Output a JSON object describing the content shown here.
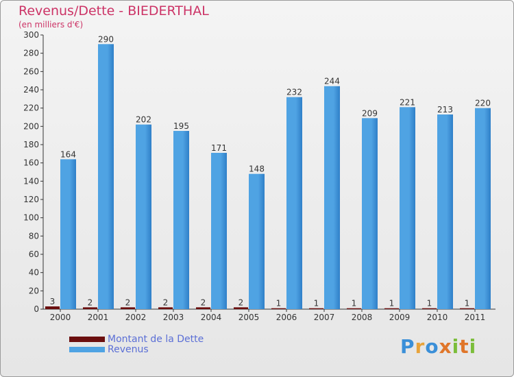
{
  "header": {
    "title": "Revenus/Dette - BIEDERTHAL",
    "subtitle": "(en milliers d'€)"
  },
  "legend": {
    "items": [
      {
        "label": "Montant de la Dette",
        "color": "#6b0f0f"
      },
      {
        "label": "Revenus",
        "color": "#4fa3e3"
      }
    ]
  },
  "logo": {
    "text": "Proxiti"
  },
  "colors": {
    "debt": "#6b0f0f",
    "revenue": "#4fa3e3",
    "revenue_dark": "#2f7fc8"
  },
  "chart_data": {
    "type": "bar",
    "title": "Revenus/Dette - BIEDERTHAL",
    "ylabel": "(en milliers d'€)",
    "xlabel": "",
    "categories": [
      "2000",
      "2001",
      "2002",
      "2003",
      "2004",
      "2005",
      "2006",
      "2007",
      "2008",
      "2009",
      "2010",
      "2011"
    ],
    "series": [
      {
        "name": "Montant de la Dette",
        "values": [
          3,
          2,
          2,
          2,
          2,
          2,
          1,
          1,
          1,
          1,
          1,
          1
        ]
      },
      {
        "name": "Revenus",
        "values": [
          164,
          290,
          202,
          195,
          171,
          148,
          232,
          244,
          209,
          221,
          213,
          220
        ]
      }
    ],
    "ylim": [
      0,
      300
    ],
    "yticks": [
      0,
      20,
      40,
      60,
      80,
      100,
      120,
      140,
      160,
      180,
      200,
      220,
      240,
      260,
      280,
      300
    ],
    "grid": false,
    "legend_position": "bottom-left"
  }
}
